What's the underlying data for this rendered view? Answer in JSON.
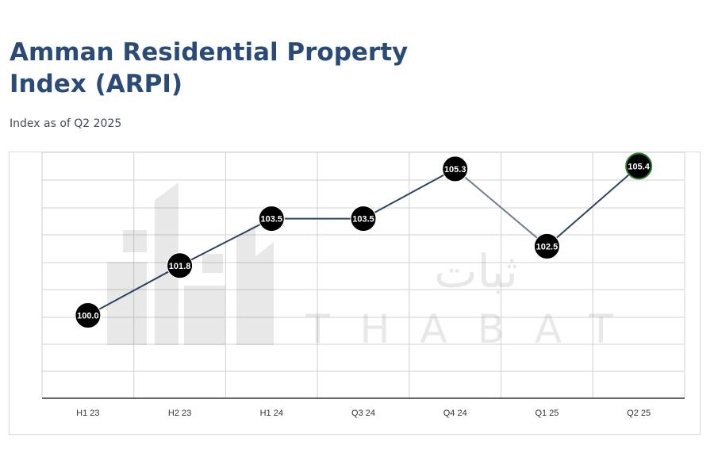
{
  "title": "Amman Residential Property Index (ARPI)",
  "subtitle": "Index as of Q2 2025",
  "watermark": {
    "arabic": "ثبات",
    "latin": "THABAT"
  },
  "colors": {
    "title": "#2a4b76",
    "line": "#2e4463",
    "line_fade": "#6f7f92",
    "marker": "#000000",
    "marker_latest_border": "#2e7d32",
    "grid": "#d0d0d0"
  },
  "chart_data": {
    "type": "line",
    "categories": [
      "H1 23",
      "H2 23",
      "H1 24",
      "Q3 24",
      "Q4 24",
      "Q1 25",
      "Q2 25"
    ],
    "values": [
      100.0,
      101.8,
      103.5,
      103.5,
      105.3,
      102.5,
      105.4
    ],
    "data_labels": [
      "100.0",
      "101.8",
      "103.5",
      "103.5",
      "105.3",
      "102.5",
      "105.4"
    ],
    "ylim": [
      97.0,
      105.9
    ],
    "grid": true,
    "xlabel": "",
    "ylabel": ""
  }
}
